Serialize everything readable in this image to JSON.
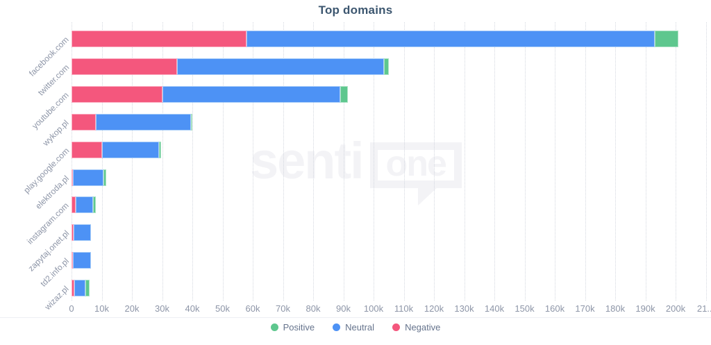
{
  "title": "Top domains",
  "watermark": {
    "part1": "senti",
    "part2": "one"
  },
  "legend": [
    {
      "label": "Positive",
      "color": "#5ec78e",
      "key": "positive"
    },
    {
      "label": "Neutral",
      "color": "#4d92f5",
      "key": "neutral"
    },
    {
      "label": "Negative",
      "color": "#f4577d",
      "key": "negative"
    }
  ],
  "chart_data": {
    "type": "bar",
    "orientation": "horizontal",
    "stacked": true,
    "title": "Top domains",
    "categories": [
      "facebook.com",
      "twitter.com",
      "youtube.com",
      "wykop.pl",
      "play.google.com",
      "elektroda.pl",
      "instagram.com",
      "zapytaj.onet.pl",
      "td2.info.pl",
      "wizaz.pl"
    ],
    "series": [
      {
        "name": "Negative",
        "key": "negative",
        "color": "#f4577d",
        "values": [
          58000,
          35000,
          30000,
          8000,
          10000,
          500,
          1400,
          700,
          200,
          900
        ]
      },
      {
        "name": "Neutral",
        "key": "neutral",
        "color": "#4d92f5",
        "values": [
          135000,
          68500,
          59000,
          31500,
          19000,
          10000,
          5700,
          5800,
          6000,
          3700
        ]
      },
      {
        "name": "Positive",
        "key": "positive",
        "color": "#5ec78e",
        "values": [
          8000,
          1500,
          2500,
          500,
          700,
          1000,
          900,
          0,
          0,
          1400
        ]
      }
    ],
    "x_axis": {
      "min": 0,
      "max": 210000,
      "tick_step": 10000,
      "tick_labels": [
        "0",
        "10k",
        "20k",
        "30k",
        "40k",
        "50k",
        "60k",
        "70k",
        "80k",
        "90k",
        "100k",
        "110k",
        "120k",
        "130k",
        "140k",
        "150k",
        "160k",
        "170k",
        "180k",
        "190k",
        "200k",
        "21..."
      ]
    },
    "grid": "vertical-dotted",
    "legend_position": "bottom"
  }
}
